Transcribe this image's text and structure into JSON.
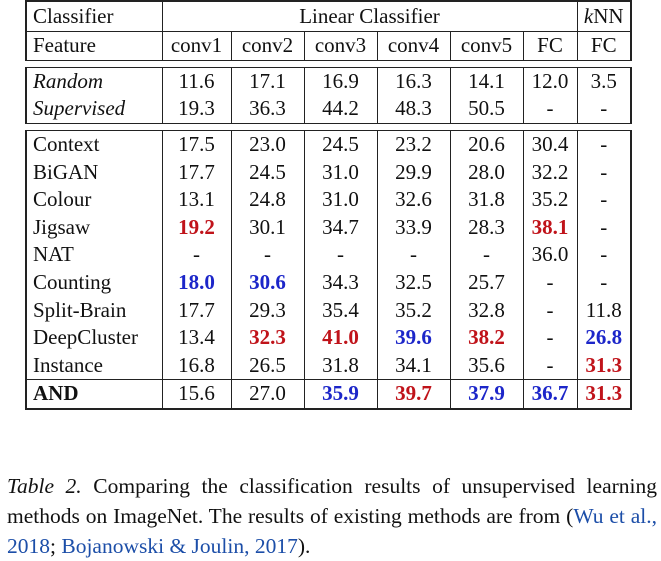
{
  "table": {
    "header_top": {
      "classifier": "Classifier",
      "linear": "Linear Classifier",
      "knn_k": "k",
      "knn_rest": "NN"
    },
    "header_sub": {
      "feature": "Feature",
      "cols": [
        "conv1",
        "conv2",
        "conv3",
        "conv4",
        "conv5",
        "FC",
        "FC"
      ]
    },
    "baselines": [
      {
        "name": "Random",
        "values": [
          "11.6",
          "17.1",
          "16.9",
          "16.3",
          "14.1",
          "12.0",
          "3.5"
        ]
      },
      {
        "name": "Supervised",
        "values": [
          "19.3",
          "36.3",
          "44.2",
          "48.3",
          "50.5",
          "-",
          "-"
        ]
      }
    ],
    "methods": [
      {
        "name": "Context",
        "values": [
          "17.5",
          "23.0",
          "24.5",
          "23.2",
          "20.6",
          "30.4",
          "-"
        ]
      },
      {
        "name": "BiGAN",
        "values": [
          "17.7",
          "24.5",
          "31.0",
          "29.9",
          "28.0",
          "32.2",
          "-"
        ]
      },
      {
        "name": "Colour",
        "values": [
          "13.1",
          "24.8",
          "31.0",
          "32.6",
          "31.8",
          "35.2",
          "-"
        ]
      },
      {
        "name": "Jigsaw",
        "values": [
          "19.2",
          "30.1",
          "34.7",
          "33.9",
          "28.3",
          "38.1",
          "-"
        ]
      },
      {
        "name": "NAT",
        "values": [
          "-",
          "-",
          "-",
          "-",
          "-",
          "36.0",
          "-"
        ]
      },
      {
        "name": "Counting",
        "values": [
          "18.0",
          "30.6",
          "34.3",
          "32.5",
          "25.7",
          "-",
          "-"
        ]
      },
      {
        "name": "Split-Brain",
        "values": [
          "17.7",
          "29.3",
          "35.4",
          "35.2",
          "32.8",
          "-",
          "11.8"
        ]
      },
      {
        "name": "DeepCluster",
        "values": [
          "13.4",
          "32.3",
          "41.0",
          "39.6",
          "38.2",
          "-",
          "26.8"
        ]
      },
      {
        "name": "Instance",
        "values": [
          "16.8",
          "26.5",
          "31.8",
          "34.1",
          "35.6",
          "-",
          "31.3"
        ]
      }
    ],
    "ours": {
      "name": "AND",
      "values": [
        "15.6",
        "27.0",
        "35.9",
        "39.7",
        "37.9",
        "36.7",
        "31.3"
      ]
    },
    "highlight_colors": {
      "red": "#c0131a",
      "blue": "#1c26c9"
    }
  },
  "caption": {
    "label": "Table 2.",
    "text": " Comparing the classification results of unsupervised learning methods on ImageNet. The results of existing methods are from ",
    "open": "(",
    "cite1": "Wu et al., 2018",
    "sep": "; ",
    "cite2": "Bojanowski & Joulin, 2017",
    "close": ")."
  }
}
